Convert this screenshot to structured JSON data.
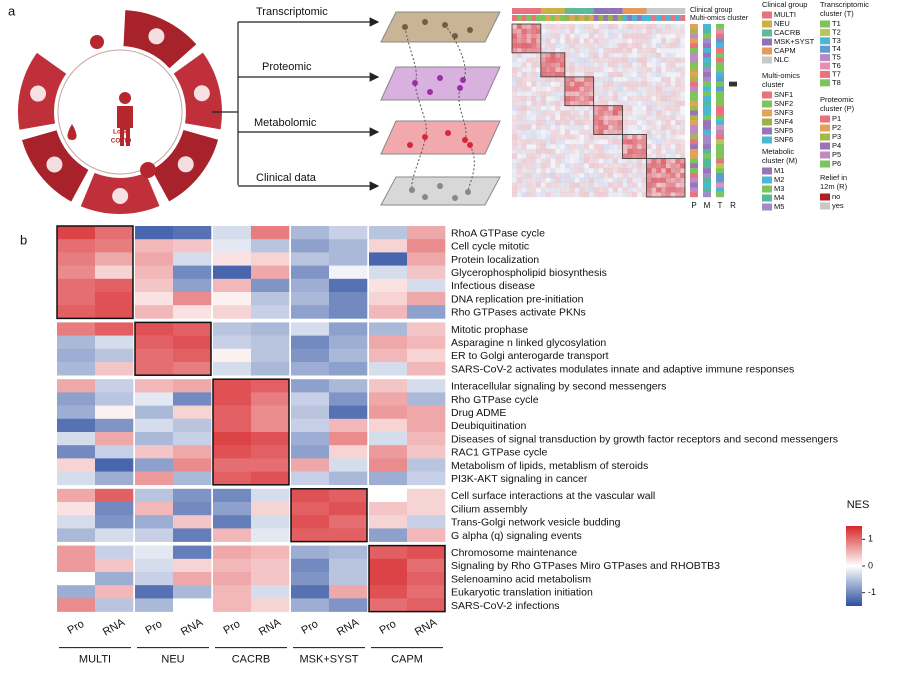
{
  "panel_a": {
    "label": "a",
    "center_label": [
      "Long",
      "COVID"
    ],
    "omics": [
      "Transcriptomic",
      "Proteomic",
      "Metabolomic",
      "Clinical data"
    ],
    "matrix_top_labels": [
      "Clinical group",
      "Multi-omics cluster"
    ],
    "matrix_side_labels": [
      "P",
      "M",
      "T",
      "R"
    ],
    "legends": [
      {
        "title_lines": [
          "Clinical group"
        ],
        "items": [
          {
            "name": "MULTI",
            "color": "#e8727f"
          },
          {
            "name": "NEU",
            "color": "#c9b243"
          },
          {
            "name": "CACRB",
            "color": "#5fb896"
          },
          {
            "name": "MSK+SYST",
            "color": "#8f73b8"
          },
          {
            "name": "CAPM",
            "color": "#e49a5b"
          },
          {
            "name": "NLC",
            "color": "#c8c8c8"
          }
        ]
      },
      {
        "title_lines": [
          "Multi-omics",
          "cluster"
        ],
        "items": [
          {
            "name": "SNF1",
            "color": "#e8727f"
          },
          {
            "name": "SNF2",
            "color": "#7dc45a"
          },
          {
            "name": "SNF3",
            "color": "#e3a25a"
          },
          {
            "name": "SNF4",
            "color": "#9bb14a"
          },
          {
            "name": "SNF5",
            "color": "#9a74b8"
          },
          {
            "name": "SNF6",
            "color": "#4ab7d4"
          }
        ]
      },
      {
        "title_lines": [
          "Metabolic",
          "cluster (M)"
        ],
        "items": [
          {
            "name": "M1",
            "color": "#9a74b8"
          },
          {
            "name": "M2",
            "color": "#4ab7d4"
          },
          {
            "name": "M3",
            "color": "#7dc45a"
          },
          {
            "name": "M4",
            "color": "#56b89a"
          },
          {
            "name": "M5",
            "color": "#a58ac9"
          }
        ]
      },
      {
        "title_lines": [
          "Transcriptomic",
          "cluster (T)"
        ],
        "items": [
          {
            "name": "T1",
            "color": "#7dc45a"
          },
          {
            "name": "T2",
            "color": "#b8c55a"
          },
          {
            "name": "T3",
            "color": "#4ab7d4"
          },
          {
            "name": "T4",
            "color": "#5f9bd0"
          },
          {
            "name": "T5",
            "color": "#b88ac4"
          },
          {
            "name": "T6",
            "color": "#e78fb2"
          },
          {
            "name": "T7",
            "color": "#e8727f"
          },
          {
            "name": "T8",
            "color": "#7dc45a"
          }
        ]
      },
      {
        "title_lines": [
          "Proteomic",
          "cluster (P)"
        ],
        "items": [
          {
            "name": "P1",
            "color": "#e8727f"
          },
          {
            "name": "P2",
            "color": "#e3a25a"
          },
          {
            "name": "P3",
            "color": "#a5b84a"
          },
          {
            "name": "P4",
            "color": "#9a74b8"
          },
          {
            "name": "P5",
            "color": "#c08ac4"
          },
          {
            "name": "P6",
            "color": "#7dc45a"
          }
        ]
      },
      {
        "title_lines": [
          "Relief in",
          "12m (R)"
        ],
        "items": [
          {
            "name": "no",
            "color": "#b01e24"
          },
          {
            "name": "yes",
            "color": "#c8c8c8"
          }
        ]
      }
    ]
  },
  "chart_data": {
    "type": "heatmap",
    "label": "b",
    "colorbar_title": "NES",
    "clim": [
      -1.5,
      1.5
    ],
    "colorbar_ticks": [
      1,
      0,
      -1
    ],
    "low_color": "#2c4fa0",
    "mid_color": "#ffffff",
    "high_color": "#d7262a",
    "column_groups": [
      {
        "name": "MULTI",
        "columns": [
          "Pro",
          "RNA"
        ]
      },
      {
        "name": "NEU",
        "columns": [
          "Pro",
          "RNA"
        ]
      },
      {
        "name": "CACRB",
        "columns": [
          "Pro",
          "RNA"
        ]
      },
      {
        "name": "MSK+SYST",
        "columns": [
          "Pro",
          "RNA"
        ]
      },
      {
        "name": "CAPM",
        "columns": [
          "Pro",
          "RNA"
        ]
      }
    ],
    "row_groups": [
      {
        "rows": [
          {
            "name": "RhoA GTPase cycle",
            "values": [
              1.3,
              1.0,
              -1.3,
              -1.2,
              -0.3,
              0.9,
              -0.6,
              -0.4,
              -0.5,
              0.6
            ]
          },
          {
            "name": "Cell cycle mitotic",
            "values": [
              1.0,
              0.9,
              0.5,
              0.4,
              -0.2,
              -0.5,
              -0.8,
              -0.6,
              0.3,
              0.8
            ]
          },
          {
            "name": "Protein localization",
            "values": [
              0.9,
              0.6,
              0.6,
              -0.3,
              0.2,
              0.3,
              -0.5,
              -0.6,
              -1.3,
              0.6
            ]
          },
          {
            "name": "Glycerophospholipid biosynthesis",
            "values": [
              0.8,
              0.3,
              0.5,
              -1.0,
              -1.3,
              0.6,
              -0.9,
              -0.1,
              -0.3,
              0.4
            ]
          },
          {
            "name": "Infectious disease",
            "values": [
              1.0,
              1.1,
              0.4,
              -0.8,
              0.5,
              -0.9,
              -0.7,
              -1.2,
              0.2,
              -0.3
            ]
          },
          {
            "name": "DNA replication pre-initiation",
            "values": [
              1.0,
              1.2,
              0.2,
              0.8,
              0.1,
              -0.5,
              -0.6,
              -1.0,
              0.3,
              0.6
            ]
          },
          {
            "name": "Rho GTPases activate PKNs",
            "values": [
              1.1,
              1.2,
              0.5,
              0.2,
              0.3,
              -0.4,
              -0.8,
              -1.0,
              0.5,
              -0.8
            ]
          }
        ]
      },
      {
        "rows": [
          {
            "name": "Mitotic prophase",
            "values": [
              0.9,
              1.1,
              1.2,
              1.1,
              -0.5,
              -0.6,
              -0.3,
              -0.8,
              -0.6,
              0.4
            ]
          },
          {
            "name": "Asparagine n linked glycosylation",
            "values": [
              -0.6,
              -0.3,
              1.1,
              1.2,
              -0.4,
              -0.5,
              -1.0,
              -0.7,
              0.6,
              0.5
            ]
          },
          {
            "name": "ER to Golgi anterogarde transport",
            "values": [
              -0.7,
              -0.5,
              1.0,
              1.1,
              0.1,
              -0.5,
              -0.9,
              -0.6,
              0.5,
              0.3
            ]
          },
          {
            "name": "SARS-CoV-2 activates modulates innate and adaptive immune responses",
            "values": [
              -0.6,
              0.4,
              1.0,
              0.9,
              -0.3,
              -0.6,
              -0.7,
              -0.8,
              -0.3,
              0.5
            ]
          }
        ]
      },
      {
        "rows": [
          {
            "name": "Interacellular signaling by second messengers",
            "values": [
              0.6,
              -0.4,
              0.5,
              0.6,
              1.2,
              1.1,
              -0.8,
              -0.6,
              0.4,
              -0.3
            ]
          },
          {
            "name": "Rho GTPase cycle",
            "values": [
              -0.8,
              -0.5,
              -0.2,
              -1.0,
              1.2,
              0.9,
              -0.4,
              -0.9,
              0.6,
              -0.6
            ]
          },
          {
            "name": "Drug ADME",
            "values": [
              -0.7,
              0.1,
              -0.6,
              0.3,
              1.1,
              0.8,
              -0.5,
              -1.2,
              0.7,
              0.6
            ]
          },
          {
            "name": "Deubiquitination",
            "values": [
              -1.2,
              -0.9,
              -0.3,
              -0.5,
              1.1,
              0.8,
              -0.4,
              0.5,
              0.3,
              0.6
            ]
          },
          {
            "name": "Diseases of signal transduction by growth factor  receptors and second messengers",
            "values": [
              -0.3,
              0.6,
              -0.6,
              -0.4,
              1.3,
              1.2,
              -0.7,
              0.8,
              -0.3,
              0.5
            ]
          },
          {
            "name": "RAC1 GTPase cycle",
            "values": [
              -1.0,
              -0.4,
              0.4,
              0.6,
              1.2,
              1.1,
              -0.8,
              0.3,
              0.7,
              0.4
            ]
          },
          {
            "name": "Metabolism of lipids, metablism of steroids",
            "values": [
              0.3,
              -1.3,
              -0.8,
              0.8,
              1.0,
              1.0,
              0.6,
              -0.3,
              0.8,
              -0.5
            ]
          },
          {
            "name": "PI3K-AKT signaling in cancer",
            "values": [
              -0.3,
              -0.7,
              0.7,
              -0.6,
              1.1,
              1.2,
              -0.4,
              -0.6,
              -0.7,
              -0.4
            ]
          }
        ]
      },
      {
        "rows": [
          {
            "name": "Cell surface interactions at the vascular wall",
            "values": [
              0.6,
              1.1,
              -0.5,
              -0.9,
              -1.0,
              -0.3,
              1.2,
              1.1,
              0.0,
              0.3
            ]
          },
          {
            "name": "Cilium assembly",
            "values": [
              0.2,
              -1.0,
              0.5,
              -1.0,
              -0.8,
              0.3,
              1.1,
              1.2,
              0.4,
              0.3
            ]
          },
          {
            "name": "Trans-Golgi network vesicle budding",
            "values": [
              -0.3,
              -0.9,
              -0.7,
              0.4,
              -1.1,
              -0.3,
              1.2,
              1.0,
              0.3,
              -0.4
            ]
          },
          {
            "name": "G alpha (q) signaling events",
            "values": [
              -0.6,
              -0.3,
              -0.4,
              -1.1,
              0.5,
              -0.2,
              1.1,
              1.1,
              -0.8,
              0.5
            ]
          }
        ]
      },
      {
        "rows": [
          {
            "name": "Chromosome maintenance",
            "values": [
              0.7,
              -0.4,
              -0.2,
              -1.1,
              0.6,
              0.5,
              -0.7,
              -0.6,
              1.1,
              1.2
            ]
          },
          {
            "name": "Signaling by Rho GTPases Miro GTPases and RHOBTB3",
            "values": [
              0.7,
              0.4,
              -0.3,
              0.3,
              0.5,
              0.4,
              -1.0,
              -0.5,
              1.3,
              1.0
            ]
          },
          {
            "name": "Selenoamino acid metabolism",
            "values": [
              0.0,
              -0.7,
              -0.4,
              0.6,
              0.6,
              0.4,
              -0.9,
              -0.5,
              1.3,
              1.1
            ]
          },
          {
            "name": "Eukaryotic translation initiation",
            "values": [
              -0.7,
              0.5,
              -1.2,
              -0.6,
              0.5,
              -0.3,
              -1.2,
              0.6,
              1.2,
              1.0
            ]
          },
          {
            "name": "SARS-CoV-2 infections",
            "values": [
              0.8,
              -0.5,
              -0.6,
              0.0,
              0.5,
              0.3,
              -0.7,
              -0.9,
              1.0,
              1.1
            ]
          }
        ]
      }
    ]
  }
}
